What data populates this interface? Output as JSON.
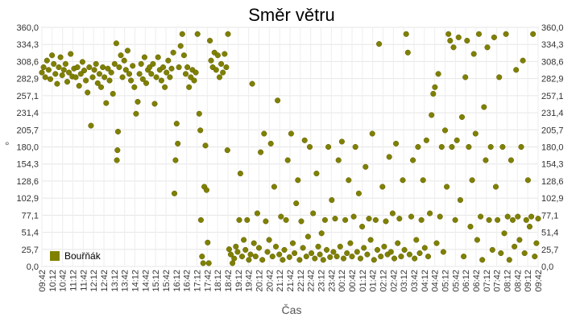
{
  "chart_data": {
    "type": "scatter",
    "title": "Směr větru",
    "xlabel": "Čas",
    "ylabel": "°",
    "ylim": [
      0,
      360
    ],
    "y_ticks": [
      "0,0",
      "25,7",
      "51,4",
      "77,1",
      "102,9",
      "128,6",
      "154,3",
      "180,0",
      "205,7",
      "231,4",
      "257,1",
      "282,9",
      "308,6",
      "334,3",
      "360,0"
    ],
    "x_ticks": [
      "09:42",
      "10:12",
      "10:42",
      "11:12",
      "11:42",
      "12:12",
      "12:42",
      "13:12",
      "13:42",
      "14:12",
      "14:42",
      "15:12",
      "15:42",
      "16:12",
      "16:42",
      "17:12",
      "17:42",
      "18:12",
      "18:42",
      "19:12",
      "19:42",
      "20:12",
      "20:42",
      "21:12",
      "21:42",
      "22:12",
      "22:42",
      "23:12",
      "23:42",
      "00:12",
      "00:42",
      "01:12",
      "01:42",
      "02:12",
      "02:42",
      "03:12",
      "03:42",
      "04:12",
      "04:42",
      "05:12",
      "05:42",
      "06:12",
      "06:42",
      "07:12",
      "07:42",
      "08:12",
      "08:42",
      "09:12",
      "09:42"
    ],
    "grid": true,
    "legend_position": "bottom-left",
    "color": "#808000",
    "series": [
      {
        "name": "Bouřňák",
        "points": [
          [
            0,
            292
          ],
          [
            0.3,
            300
          ],
          [
            0.6,
            285
          ],
          [
            0.9,
            310
          ],
          [
            1.2,
            296
          ],
          [
            1.5,
            282
          ],
          [
            1.8,
            318
          ],
          [
            2.1,
            305
          ],
          [
            2.4,
            290
          ],
          [
            2.7,
            275
          ],
          [
            3.0,
            300
          ],
          [
            3.3,
            315
          ],
          [
            3.6,
            288
          ],
          [
            3.9,
            296
          ],
          [
            4.2,
            305
          ],
          [
            4.5,
            278
          ],
          [
            4.8,
            292
          ],
          [
            5.1,
            320
          ],
          [
            5.4,
            286
          ],
          [
            5.7,
            298
          ],
          [
            6.0,
            285
          ],
          [
            6.3,
            300
          ],
          [
            6.6,
            272
          ],
          [
            6.9,
            290
          ],
          [
            7.2,
            308
          ],
          [
            7.5,
            295
          ],
          [
            7.8,
            280
          ],
          [
            8.1,
            262
          ],
          [
            8.4,
            300
          ],
          [
            8.7,
            212
          ],
          [
            9.0,
            285
          ],
          [
            9.3,
            296
          ],
          [
            9.6,
            305
          ],
          [
            9.9,
            276
          ],
          [
            10.2,
            290
          ],
          [
            10.5,
            270
          ],
          [
            10.8,
            300
          ],
          [
            11.1,
            285
          ],
          [
            11.4,
            246
          ],
          [
            11.7,
            298
          ],
          [
            12.0,
            280
          ],
          [
            12.3,
            292
          ],
          [
            12.6,
            260
          ],
          [
            12.9,
            305
          ],
          [
            13.2,
            336
          ],
          [
            13.3,
            160
          ],
          [
            13.4,
            175
          ],
          [
            13.5,
            203
          ],
          [
            13.7,
            300
          ],
          [
            14.0,
            318
          ],
          [
            14.3,
            285
          ],
          [
            14.6,
            310
          ],
          [
            14.9,
            296
          ],
          [
            15.2,
            325
          ],
          [
            15.5,
            290
          ],
          [
            15.8,
            280
          ],
          [
            16.1,
            302
          ],
          [
            16.4,
            270
          ],
          [
            16.7,
            230
          ],
          [
            17.0,
            248
          ],
          [
            17.3,
            290
          ],
          [
            17.6,
            305
          ],
          [
            17.9,
            282
          ],
          [
            18.2,
            315
          ],
          [
            18.5,
            276
          ],
          [
            18.8,
            296
          ],
          [
            19.1,
            300
          ],
          [
            19.4,
            290
          ],
          [
            19.7,
            305
          ],
          [
            20.0,
            245
          ],
          [
            20.3,
            285
          ],
          [
            20.6,
            315
          ],
          [
            20.9,
            296
          ],
          [
            21.2,
            280
          ],
          [
            21.5,
            300
          ],
          [
            21.8,
            270
          ],
          [
            22.1,
            292
          ],
          [
            22.4,
            310
          ],
          [
            22.7,
            285
          ],
          [
            23.0,
            298
          ],
          [
            23.3,
            322
          ],
          [
            23.5,
            110
          ],
          [
            23.7,
            160
          ],
          [
            23.9,
            215
          ],
          [
            24.1,
            185
          ],
          [
            24.3,
            300
          ],
          [
            24.6,
            332
          ],
          [
            24.9,
            350
          ],
          [
            25.2,
            318
          ],
          [
            25.5,
            290
          ],
          [
            25.8,
            300
          ],
          [
            26.1,
            270
          ],
          [
            26.4,
            285
          ],
          [
            26.7,
            296
          ],
          [
            27.0,
            280
          ],
          [
            27.3,
            292
          ],
          [
            27.6,
            350
          ],
          [
            27.9,
            230
          ],
          [
            28.1,
            205
          ],
          [
            28.2,
            70
          ],
          [
            28.4,
            15
          ],
          [
            28.6,
            5
          ],
          [
            28.8,
            120
          ],
          [
            29.0,
            182
          ],
          [
            29.2,
            115
          ],
          [
            29.4,
            36
          ],
          [
            29.6,
            5
          ],
          [
            29.8,
            340
          ],
          [
            30.0,
            310
          ],
          [
            30.3,
            300
          ],
          [
            30.6,
            322
          ],
          [
            30.9,
            296
          ],
          [
            31.2,
            318
          ],
          [
            31.5,
            285
          ],
          [
            31.8,
            305
          ],
          [
            32.1,
            292
          ],
          [
            32.4,
            320
          ],
          [
            32.7,
            300
          ],
          [
            32.9,
            175
          ],
          [
            33.0,
            350
          ],
          [
            33.2,
            26
          ],
          [
            33.5,
            18
          ],
          [
            33.8,
            5
          ],
          [
            34.1,
            12
          ],
          [
            34.4,
            30
          ],
          [
            34.7,
            22
          ],
          [
            35.0,
            70
          ],
          [
            35.2,
            140
          ],
          [
            35.5,
            15
          ],
          [
            35.8,
            40
          ],
          [
            36.1,
            25
          ],
          [
            36.4,
            70
          ],
          [
            36.7,
            10
          ],
          [
            37.0,
            18
          ],
          [
            37.3,
            275
          ],
          [
            37.6,
            35
          ],
          [
            37.9,
            15
          ],
          [
            38.2,
            80
          ],
          [
            38.5,
            28
          ],
          [
            38.8,
            172
          ],
          [
            39.1,
            10
          ],
          [
            39.4,
            200
          ],
          [
            39.7,
            68
          ],
          [
            40.0,
            22
          ],
          [
            40.3,
            40
          ],
          [
            40.6,
            185
          ],
          [
            40.9,
            15
          ],
          [
            41.2,
            120
          ],
          [
            41.5,
            30
          ],
          [
            41.8,
            250
          ],
          [
            42.1,
            18
          ],
          [
            42.4,
            75
          ],
          [
            42.7,
            10
          ],
          [
            43.0,
            25
          ],
          [
            43.3,
            70
          ],
          [
            43.6,
            160
          ],
          [
            43.9,
            14
          ],
          [
            44.2,
            200
          ],
          [
            44.5,
            35
          ],
          [
            44.8,
            20
          ],
          [
            45.1,
            95
          ],
          [
            45.4,
            130
          ],
          [
            45.7,
            10
          ],
          [
            46.0,
            68
          ],
          [
            46.3,
            28
          ],
          [
            46.6,
            190
          ],
          [
            46.9,
            15
          ],
          [
            47.2,
            45
          ],
          [
            47.5,
            180
          ],
          [
            47.8,
            20
          ],
          [
            48.1,
            80
          ],
          [
            48.4,
            12
          ],
          [
            48.7,
            140
          ],
          [
            49.0,
            30
          ],
          [
            49.3,
            18
          ],
          [
            49.6,
            50
          ],
          [
            49.9,
            10
          ],
          [
            50.2,
            70
          ],
          [
            50.5,
            25
          ],
          [
            50.8,
            180
          ],
          [
            51.1,
            14
          ],
          [
            51.4,
            100
          ],
          [
            51.7,
            22
          ],
          [
            52.0,
            72
          ],
          [
            52.3,
            15
          ],
          [
            52.6,
            160
          ],
          [
            52.9,
            30
          ],
          [
            53.2,
            188
          ],
          [
            53.5,
            12
          ],
          [
            53.8,
            70
          ],
          [
            54.1,
            20
          ],
          [
            54.4,
            130
          ],
          [
            54.7,
            35
          ],
          [
            55.0,
            15
          ],
          [
            55.3,
            75
          ],
          [
            55.6,
            180
          ],
          [
            55.9,
            22
          ],
          [
            56.2,
            110
          ],
          [
            56.5,
            12
          ],
          [
            56.8,
            60
          ],
          [
            57.1,
            28
          ],
          [
            57.4,
            150
          ],
          [
            57.7,
            18
          ],
          [
            58.0,
            72
          ],
          [
            58.3,
            40
          ],
          [
            58.6,
            200
          ],
          [
            58.9,
            10
          ],
          [
            59.2,
            70
          ],
          [
            59.5,
            25
          ],
          [
            59.8,
            335
          ],
          [
            60.1,
            15
          ],
          [
            60.4,
            120
          ],
          [
            60.7,
            30
          ],
          [
            61.0,
            68
          ],
          [
            61.3,
            18
          ],
          [
            61.6,
            165
          ],
          [
            61.9,
            22
          ],
          [
            62.2,
            80
          ],
          [
            62.5,
            12
          ],
          [
            62.8,
            185
          ],
          [
            63.1,
            35
          ],
          [
            63.4,
            72
          ],
          [
            63.7,
            15
          ],
          [
            64.0,
            130
          ],
          [
            64.3,
            25
          ],
          [
            64.6,
            350
          ],
          [
            64.9,
            322
          ],
          [
            65.2,
            18
          ],
          [
            65.5,
            75
          ],
          [
            65.8,
            160
          ],
          [
            66.1,
            12
          ],
          [
            66.4,
            40
          ],
          [
            66.7,
            180
          ],
          [
            67.0,
            20
          ],
          [
            67.3,
            70
          ],
          [
            67.6,
            130
          ],
          [
            67.9,
            28
          ],
          [
            68.2,
            190
          ],
          [
            68.5,
            15
          ],
          [
            68.8,
            80
          ],
          [
            69.1,
            228
          ],
          [
            69.4,
            260
          ],
          [
            69.7,
            270
          ],
          [
            70.0,
            35
          ],
          [
            70.3,
            290
          ],
          [
            70.6,
            75
          ],
          [
            70.9,
            180
          ],
          [
            71.2,
            22
          ],
          [
            71.5,
            205
          ],
          [
            71.8,
            120
          ],
          [
            72.1,
            350
          ],
          [
            72.4,
            340
          ],
          [
            72.7,
            180
          ],
          [
            73.0,
            330
          ],
          [
            73.3,
            70
          ],
          [
            73.6,
            190
          ],
          [
            73.9,
            345
          ],
          [
            74.2,
            100
          ],
          [
            74.5,
            225
          ],
          [
            74.8,
            15
          ],
          [
            75.1,
            285
          ],
          [
            75.4,
            340
          ],
          [
            75.7,
            180
          ],
          [
            76.0,
            60
          ],
          [
            76.3,
            130
          ],
          [
            76.6,
            320
          ],
          [
            76.9,
            200
          ],
          [
            77.2,
            40
          ],
          [
            77.5,
            350
          ],
          [
            77.8,
            75
          ],
          [
            78.1,
            10
          ],
          [
            78.4,
            240
          ],
          [
            78.7,
            160
          ],
          [
            79.0,
            330
          ],
          [
            79.3,
            70
          ],
          [
            79.6,
            180
          ],
          [
            79.9,
            25
          ],
          [
            80.2,
            345
          ],
          [
            80.5,
            120
          ],
          [
            80.8,
            70
          ],
          [
            81.1,
            285
          ],
          [
            81.4,
            20
          ],
          [
            81.7,
            180
          ],
          [
            82.0,
            50
          ],
          [
            82.3,
            350
          ],
          [
            82.6,
            75
          ],
          [
            82.9,
            10
          ],
          [
            83.2,
            160
          ],
          [
            83.5,
            70
          ],
          [
            83.8,
            30
          ],
          [
            84.1,
            296
          ],
          [
            84.4,
            75
          ],
          [
            84.7,
            40
          ],
          [
            85.0,
            180
          ],
          [
            85.3,
            310
          ],
          [
            85.6,
            20
          ],
          [
            85.9,
            70
          ],
          [
            86.2,
            130
          ],
          [
            86.5,
            60
          ],
          [
            86.8,
            75
          ],
          [
            87.1,
            350
          ],
          [
            87.4,
            15
          ],
          [
            87.7,
            35
          ],
          [
            88.0,
            72
          ]
        ]
      }
    ]
  }
}
